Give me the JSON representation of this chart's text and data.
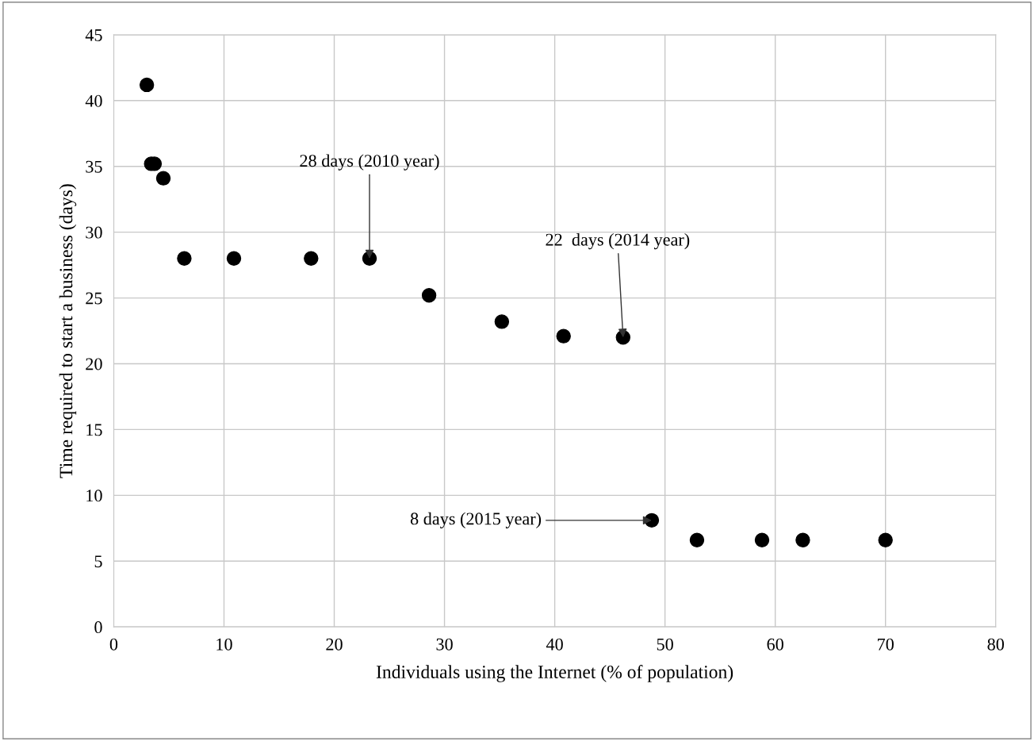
{
  "chart_data": {
    "type": "scatter",
    "xlabel": "Individuals using the Internet (% of population)",
    "ylabel": "Time required to start a business (days)",
    "x": [
      3.0,
      3.4,
      3.7,
      4.5,
      6.4,
      10.9,
      17.9,
      23.2,
      28.6,
      35.2,
      40.8,
      46.2,
      48.8,
      52.9,
      58.8,
      62.5,
      70.0
    ],
    "series": [
      {
        "color": "#000000",
        "values": [
          41.2,
          35.2,
          35.2,
          34.1,
          28,
          28,
          28,
          28,
          25.2,
          23.2,
          22.1,
          22,
          8.1,
          6.6,
          6.6,
          6.6,
          6.6
        ]
      }
    ],
    "xlim": [
      0,
      80
    ],
    "xticks": [
      0,
      10,
      20,
      30,
      40,
      50,
      60,
      70,
      80
    ],
    "ylim": [
      0,
      45
    ],
    "yticks": [
      0,
      5,
      10,
      15,
      20,
      25,
      30,
      35,
      40,
      45
    ],
    "grid": true,
    "marker": "circle",
    "annotations": [
      {
        "text": "28 days (2010 year)",
        "x": 23.2,
        "y": 28
      },
      {
        "text": "22  days (2014 year)",
        "x": 46.2,
        "y": 22
      },
      {
        "text": "8 days (2015 year)",
        "x": 48.8,
        "y": 8.1
      }
    ]
  }
}
